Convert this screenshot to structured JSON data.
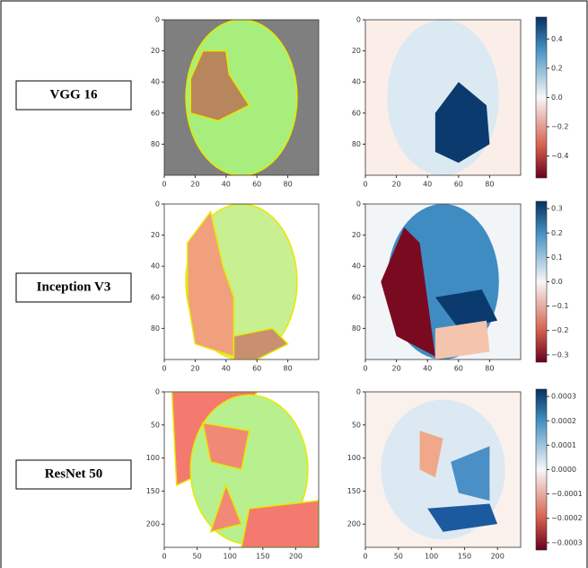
{
  "rows": [
    {
      "label": "VGG 16",
      "image": {
        "xlim": [
          0,
          100
        ],
        "ylim": [
          0,
          100
        ],
        "xticks": [
          0,
          20,
          40,
          60,
          80
        ],
        "yticks": [
          0,
          20,
          40,
          60,
          80
        ]
      },
      "map": {
        "xlim": [
          0,
          100
        ],
        "ylim": [
          0,
          100
        ],
        "xticks": [
          0,
          20,
          40,
          60,
          80
        ],
        "yticks": [
          0,
          20,
          40,
          60,
          80
        ]
      },
      "colorbar": {
        "lim": [
          -0.55,
          0.55
        ],
        "ticks": [
          0.4,
          0.2,
          {
            "value": 0,
            "label": "0.0"
          },
          {
            "value": -0.2,
            "label": "−0.2"
          },
          {
            "value": -0.4,
            "label": "−0.4"
          }
        ]
      }
    },
    {
      "label": "Inception V3",
      "image": {
        "xlim": [
          0,
          100
        ],
        "ylim": [
          0,
          100
        ],
        "xticks": [
          0,
          20,
          40,
          60,
          80
        ],
        "yticks": [
          0,
          20,
          40,
          60,
          80
        ]
      },
      "map": {
        "xlim": [
          0,
          100
        ],
        "ylim": [
          0,
          100
        ],
        "xticks": [
          0,
          20,
          40,
          60,
          80
        ],
        "yticks": [
          0,
          20,
          40,
          60,
          80
        ]
      },
      "colorbar": {
        "lim": [
          -0.33,
          0.33
        ],
        "ticks": [
          0.3,
          0.2,
          0.1,
          {
            "value": 0,
            "label": "0.0"
          },
          {
            "value": -0.1,
            "label": "−0.1"
          },
          {
            "value": -0.2,
            "label": "−0.2"
          },
          {
            "value": -0.3,
            "label": "−0.3"
          }
        ]
      }
    },
    {
      "label": "ResNet 50",
      "image": {
        "xlim": [
          0,
          235
        ],
        "ylim": [
          0,
          235
        ],
        "xticks": [
          0,
          50,
          100,
          150,
          200
        ],
        "yticks": [
          0,
          50,
          100,
          150,
          200
        ]
      },
      "map": {
        "xlim": [
          0,
          235
        ],
        "ylim": [
          0,
          235
        ],
        "xticks": [
          0,
          50,
          100,
          150,
          200
        ],
        "yticks": [
          0,
          50,
          100,
          150,
          200
        ]
      },
      "colorbar": {
        "lim": [
          -0.00033,
          0.00033
        ],
        "ticks": [
          0.0003,
          0.0002,
          0.0001,
          {
            "value": 0,
            "label": "0.0000"
          },
          {
            "value": -0.0001,
            "label": "−0.0001"
          },
          {
            "value": -0.0002,
            "label": "−0.0002"
          },
          {
            "value": -0.0003,
            "label": "−0.0003"
          }
        ]
      }
    }
  ]
}
